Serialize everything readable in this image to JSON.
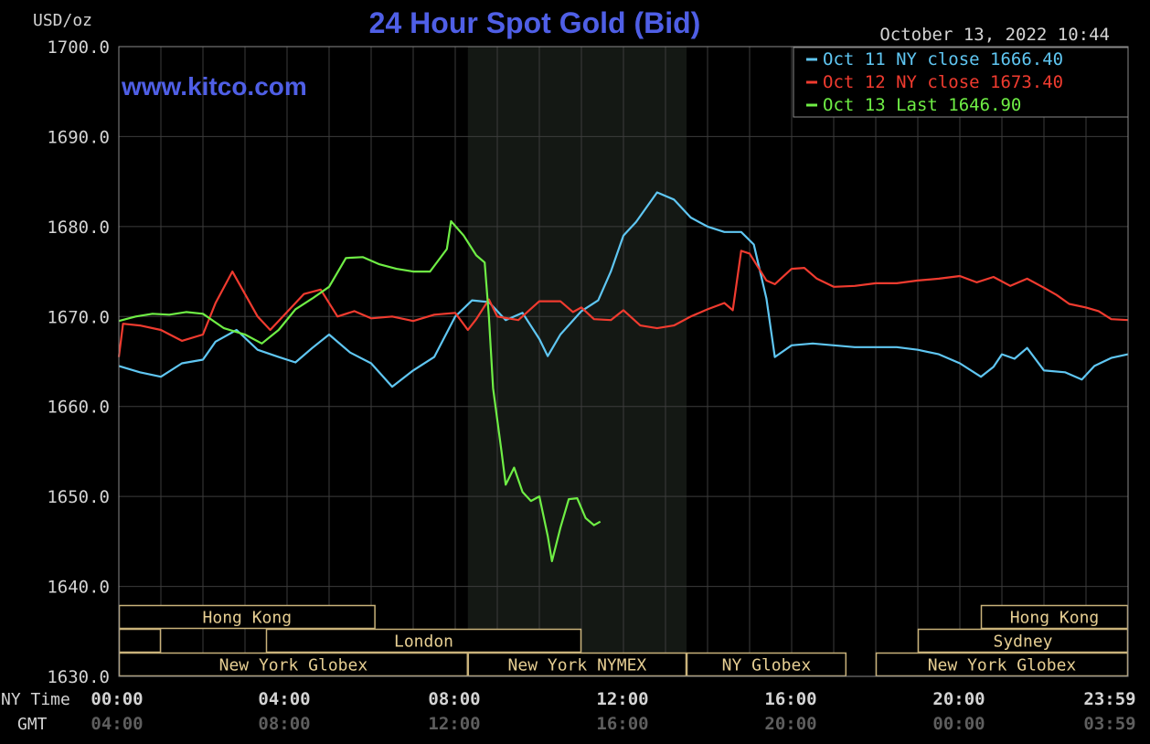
{
  "chart_data": {
    "type": "line",
    "title": "24 Hour Spot Gold (Bid)",
    "watermark": "www.kitco.com",
    "timestamp": "October 13, 2022 10:44",
    "ylabel": "USD/oz",
    "ylim": [
      1630,
      1700
    ],
    "yticks": [
      "1700.0",
      "1690.0",
      "1680.0",
      "1670.0",
      "1660.0",
      "1650.0",
      "1640.0",
      "1630.0"
    ],
    "x_axis_rows": [
      {
        "label": "NY Time",
        "ticks": [
          "00:00",
          "04:00",
          "08:00",
          "12:00",
          "16:00",
          "20:00",
          "23:59"
        ]
      },
      {
        "label": "GMT",
        "ticks": [
          "04:00",
          "08:00",
          "12:00",
          "16:00",
          "20:00",
          "00:00",
          "03:59"
        ]
      }
    ],
    "xlim_hours": [
      0,
      24
    ],
    "grid": true,
    "highlight_band_hours": [
      8.3,
      13.5
    ],
    "legend_position": "top-right",
    "colors": {
      "background": "#000000",
      "grid": "#3c3c3c",
      "title": "#4f5fe6",
      "band": "#141814",
      "session_border": "#c9b27a",
      "session_text": "#e7cf93",
      "text": "#d4d4d4",
      "gmt_text": "#5e5e5e"
    },
    "series": [
      {
        "name": "Oct 11 NY close",
        "legend_value": "1666.40",
        "color": "#5fc6f2",
        "points": [
          [
            0,
            1664.5
          ],
          [
            0.5,
            1663.8
          ],
          [
            1,
            1663.3
          ],
          [
            1.5,
            1664.8
          ],
          [
            2,
            1665.2
          ],
          [
            2.3,
            1667.2
          ],
          [
            2.8,
            1668.5
          ],
          [
            3.3,
            1666.3
          ],
          [
            3.8,
            1665.5
          ],
          [
            4.2,
            1664.9
          ],
          [
            4.6,
            1666.5
          ],
          [
            5,
            1668
          ],
          [
            5.5,
            1666
          ],
          [
            6,
            1664.8
          ],
          [
            6.5,
            1662.2
          ],
          [
            7,
            1664
          ],
          [
            7.5,
            1665.5
          ],
          [
            8,
            1670
          ],
          [
            8.4,
            1671.8
          ],
          [
            8.8,
            1671.6
          ],
          [
            9.2,
            1669.6
          ],
          [
            9.6,
            1670.4
          ],
          [
            10,
            1667.5
          ],
          [
            10.2,
            1665.6
          ],
          [
            10.5,
            1668
          ],
          [
            11,
            1670.6
          ],
          [
            11.4,
            1671.8
          ],
          [
            11.7,
            1675
          ],
          [
            12,
            1679
          ],
          [
            12.3,
            1680.5
          ],
          [
            12.8,
            1683.8
          ],
          [
            13.2,
            1683
          ],
          [
            13.6,
            1681
          ],
          [
            14,
            1680
          ],
          [
            14.4,
            1679.4
          ],
          [
            14.8,
            1679.4
          ],
          [
            15.1,
            1678
          ],
          [
            15.4,
            1672
          ],
          [
            15.6,
            1665.5
          ],
          [
            16,
            1666.8
          ],
          [
            16.5,
            1667
          ],
          [
            17,
            1666.8
          ],
          [
            17.5,
            1666.6
          ],
          [
            18,
            1666.6
          ],
          [
            18.5,
            1666.6
          ],
          [
            19,
            1666.3
          ],
          [
            19.5,
            1665.8
          ],
          [
            20,
            1664.8
          ],
          [
            20.5,
            1663.3
          ],
          [
            20.8,
            1664.4
          ],
          [
            21,
            1665.8
          ],
          [
            21.3,
            1665.3
          ],
          [
            21.6,
            1666.5
          ],
          [
            22,
            1664
          ],
          [
            22.5,
            1663.8
          ],
          [
            22.9,
            1663
          ],
          [
            23.2,
            1664.5
          ],
          [
            23.6,
            1665.4
          ],
          [
            24,
            1665.8
          ]
        ]
      },
      {
        "name": "Oct 12 NY close",
        "legend_value": "1673.40",
        "color": "#f03b2f",
        "points": [
          [
            0,
            1665.5
          ],
          [
            0.1,
            1669.2
          ],
          [
            0.5,
            1669
          ],
          [
            1,
            1668.5
          ],
          [
            1.5,
            1667.3
          ],
          [
            2,
            1668
          ],
          [
            2.3,
            1671.5
          ],
          [
            2.7,
            1675
          ],
          [
            3,
            1672.5
          ],
          [
            3.3,
            1670
          ],
          [
            3.6,
            1668.5
          ],
          [
            4,
            1670.5
          ],
          [
            4.4,
            1672.5
          ],
          [
            4.8,
            1673
          ],
          [
            5.2,
            1670
          ],
          [
            5.6,
            1670.6
          ],
          [
            6,
            1669.8
          ],
          [
            6.5,
            1670
          ],
          [
            7,
            1669.5
          ],
          [
            7.5,
            1670.2
          ],
          [
            8,
            1670.4
          ],
          [
            8.3,
            1668.5
          ],
          [
            8.5,
            1669.7
          ],
          [
            8.8,
            1671.9
          ],
          [
            9,
            1670
          ],
          [
            9.5,
            1669.6
          ],
          [
            10,
            1671.7
          ],
          [
            10.5,
            1671.7
          ],
          [
            10.8,
            1670.5
          ],
          [
            11,
            1671
          ],
          [
            11.3,
            1669.7
          ],
          [
            11.7,
            1669.6
          ],
          [
            12,
            1670.7
          ],
          [
            12.4,
            1669
          ],
          [
            12.8,
            1668.7
          ],
          [
            13.2,
            1669
          ],
          [
            13.6,
            1670
          ],
          [
            14,
            1670.8
          ],
          [
            14.4,
            1671.5
          ],
          [
            14.6,
            1670.7
          ],
          [
            14.8,
            1677.3
          ],
          [
            15,
            1677
          ],
          [
            15.4,
            1674
          ],
          [
            15.6,
            1673.6
          ],
          [
            16,
            1675.3
          ],
          [
            16.3,
            1675.4
          ],
          [
            16.6,
            1674.2
          ],
          [
            17,
            1673.3
          ],
          [
            17.5,
            1673.4
          ],
          [
            18,
            1673.7
          ],
          [
            18.5,
            1673.7
          ],
          [
            19,
            1674
          ],
          [
            19.5,
            1674.2
          ],
          [
            20,
            1674.5
          ],
          [
            20.4,
            1673.8
          ],
          [
            20.8,
            1674.4
          ],
          [
            21.2,
            1673.4
          ],
          [
            21.6,
            1674.2
          ],
          [
            22,
            1673.2
          ],
          [
            22.3,
            1672.4
          ],
          [
            22.6,
            1671.4
          ],
          [
            23,
            1671
          ],
          [
            23.3,
            1670.6
          ],
          [
            23.6,
            1669.7
          ],
          [
            24,
            1669.6
          ]
        ]
      },
      {
        "name": "Oct 13 Last",
        "legend_value": "1646.90",
        "color": "#6fee45",
        "points": [
          [
            0,
            1669.5
          ],
          [
            0.4,
            1670
          ],
          [
            0.8,
            1670.3
          ],
          [
            1.2,
            1670.2
          ],
          [
            1.6,
            1670.5
          ],
          [
            2,
            1670.3
          ],
          [
            2.5,
            1668.7
          ],
          [
            3,
            1668
          ],
          [
            3.4,
            1667
          ],
          [
            3.8,
            1668.5
          ],
          [
            4.2,
            1670.8
          ],
          [
            4.6,
            1672
          ],
          [
            5,
            1673.3
          ],
          [
            5.4,
            1676.5
          ],
          [
            5.8,
            1676.6
          ],
          [
            6.2,
            1675.8
          ],
          [
            6.6,
            1675.3
          ],
          [
            7,
            1675
          ],
          [
            7.4,
            1675
          ],
          [
            7.8,
            1677.5
          ],
          [
            7.9,
            1680.6
          ],
          [
            8.2,
            1679
          ],
          [
            8.5,
            1676.8
          ],
          [
            8.7,
            1676
          ],
          [
            8.8,
            1670
          ],
          [
            8.9,
            1662
          ],
          [
            9.1,
            1655
          ],
          [
            9.2,
            1651.3
          ],
          [
            9.4,
            1653.2
          ],
          [
            9.6,
            1650.5
          ],
          [
            9.8,
            1649.5
          ],
          [
            10,
            1650
          ],
          [
            10.2,
            1645.6
          ],
          [
            10.3,
            1642.8
          ],
          [
            10.5,
            1646.5
          ],
          [
            10.7,
            1649.7
          ],
          [
            10.9,
            1649.8
          ],
          [
            11.1,
            1647.6
          ],
          [
            11.3,
            1646.8
          ],
          [
            11.45,
            1647.2
          ]
        ]
      }
    ],
    "sessions": [
      {
        "label": "Hong Kong",
        "start": 0,
        "end": 6.1,
        "row": 0
      },
      {
        "label": "Hong Kong",
        "start": 20.5,
        "end": 24,
        "row": 0
      },
      {
        "label": "London",
        "start": 3.5,
        "end": 11,
        "row": 1
      },
      {
        "label": "Sydney",
        "start": 19,
        "end": 24,
        "row": 1
      },
      {
        "label": "New York Globex",
        "start": 0,
        "end": 8.3,
        "row": 2
      },
      {
        "label": "New York NYMEX",
        "start": 8.3,
        "end": 13.5,
        "row": 2
      },
      {
        "label": "NY Globex",
        "start": 13.5,
        "end": 17.3,
        "row": 2
      },
      {
        "label": "New York Globex",
        "start": 18,
        "end": 24,
        "row": 2
      }
    ],
    "session_stubs": [
      {
        "start": 0,
        "end": 1,
        "row": 1
      }
    ]
  }
}
